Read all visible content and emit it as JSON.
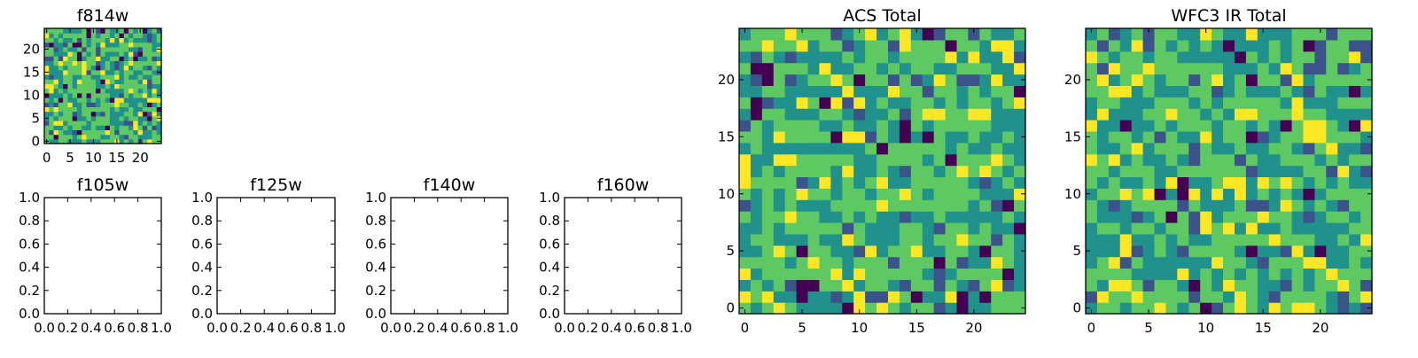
{
  "chart_data": [
    {
      "type": "heatmap",
      "title": "f814w",
      "x_ticks": [
        0,
        5,
        10,
        15,
        20
      ],
      "y_ticks": [
        0,
        5,
        10,
        15,
        20
      ],
      "xlim": [
        -0.5,
        24.5
      ],
      "ylim": [
        -0.5,
        24.5
      ],
      "grid_size": 25,
      "colormap": [
        "#440154",
        "#3b528b",
        "#21918c",
        "#5ec962",
        "#fde725"
      ],
      "seed": 814
    },
    {
      "type": "empty",
      "title": "f105w",
      "x_ticks": [
        "0.0",
        "0.2",
        "0.4",
        "0.6",
        "0.8",
        "1.0"
      ],
      "y_ticks": [
        "0.0",
        "0.2",
        "0.4",
        "0.6",
        "0.8",
        "1.0"
      ],
      "xlim": [
        0,
        1
      ],
      "ylim": [
        0,
        1
      ]
    },
    {
      "type": "empty",
      "title": "f125w",
      "x_ticks": [
        "0.0",
        "0.2",
        "0.4",
        "0.6",
        "0.8",
        "1.0"
      ],
      "y_ticks": [
        "0.0",
        "0.2",
        "0.4",
        "0.6",
        "0.8",
        "1.0"
      ],
      "xlim": [
        0,
        1
      ],
      "ylim": [
        0,
        1
      ]
    },
    {
      "type": "empty",
      "title": "f140w",
      "x_ticks": [
        "0.0",
        "0.2",
        "0.4",
        "0.6",
        "0.8",
        "1.0"
      ],
      "y_ticks": [
        "0.0",
        "0.2",
        "0.4",
        "0.6",
        "0.8",
        "1.0"
      ],
      "xlim": [
        0,
        1
      ],
      "ylim": [
        0,
        1
      ]
    },
    {
      "type": "empty",
      "title": "f160w",
      "x_ticks": [
        "0.0",
        "0.2",
        "0.4",
        "0.6",
        "0.8",
        "1.0"
      ],
      "y_ticks": [
        "0.0",
        "0.2",
        "0.4",
        "0.6",
        "0.8",
        "1.0"
      ],
      "xlim": [
        0,
        1
      ],
      "ylim": [
        0,
        1
      ]
    },
    {
      "type": "heatmap",
      "title": "ACS Total",
      "x_ticks": [
        0,
        5,
        10,
        15,
        20
      ],
      "y_ticks": [
        0,
        5,
        10,
        15,
        20
      ],
      "xlim": [
        -0.5,
        24.5
      ],
      "ylim": [
        -0.5,
        24.5
      ],
      "grid_size": 25,
      "colormap": [
        "#440154",
        "#3b528b",
        "#21918c",
        "#5ec962",
        "#fde725"
      ],
      "seed": 3141
    },
    {
      "type": "heatmap",
      "title": "WFC3 IR Total",
      "x_ticks": [
        0,
        5,
        10,
        15,
        20
      ],
      "y_ticks": [
        0,
        5,
        10,
        15,
        20
      ],
      "xlim": [
        -0.5,
        24.5
      ],
      "ylim": [
        -0.5,
        24.5
      ],
      "grid_size": 25,
      "colormap": [
        "#440154",
        "#3b528b",
        "#21918c",
        "#5ec962",
        "#fde725"
      ],
      "seed": 2718
    }
  ]
}
